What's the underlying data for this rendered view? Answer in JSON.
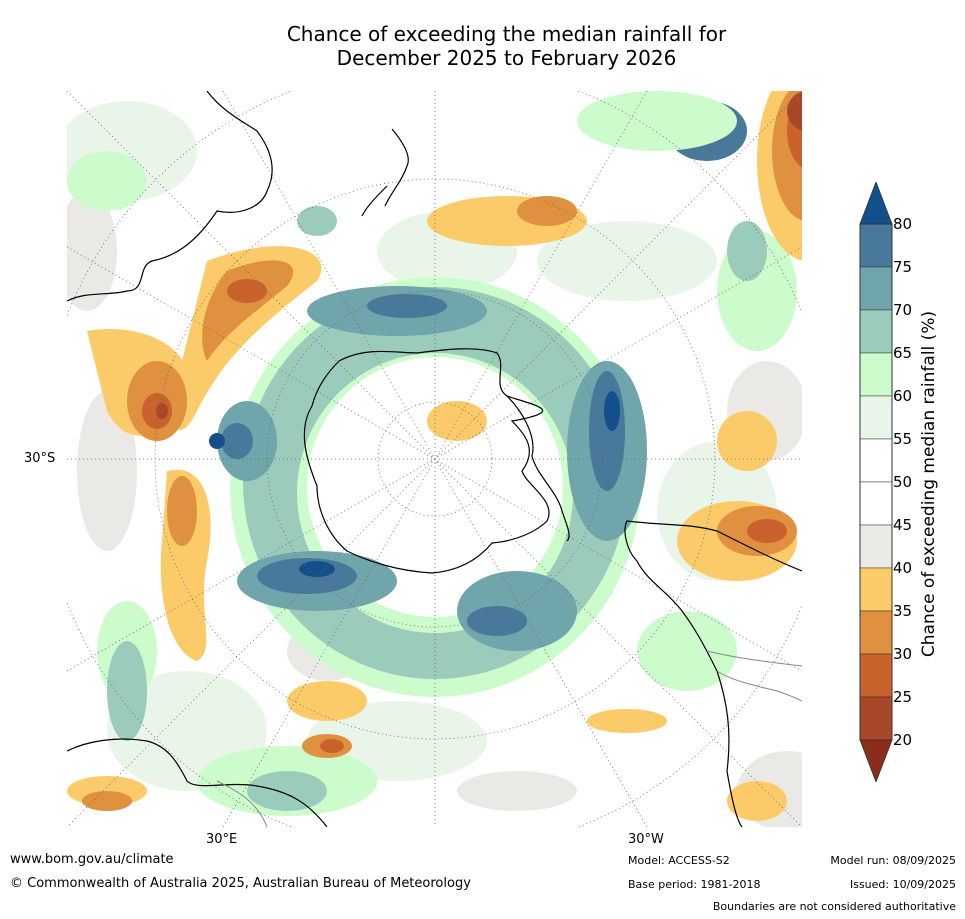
{
  "title_line1": "Chance of exceeding the median rainfall for",
  "title_line2": "December 2025 to February 2026",
  "map": {
    "projection": "south polar stereographic",
    "lat_labels": [
      "30°S"
    ],
    "lon_labels": [
      "30°E",
      "30°W"
    ],
    "colors": {
      "ocean_bg": "#ffffff",
      "coastline": "#000000",
      "boundary": "#888888",
      "graticule": "#666666"
    }
  },
  "legend": {
    "title": "Chance of exceeding median rainfall (%)",
    "ticks": [
      "80",
      "75",
      "70",
      "65",
      "60",
      "55",
      "50",
      "45",
      "40",
      "35",
      "30",
      "25",
      "20"
    ],
    "bins": [
      {
        "range": "above 80",
        "color": "#134f8a"
      },
      {
        "range": "75-80",
        "color": "#48799a"
      },
      {
        "range": "70-75",
        "color": "#6fa5ab"
      },
      {
        "range": "65-70",
        "color": "#9bccbb"
      },
      {
        "range": "60-65",
        "color": "#ccfccc"
      },
      {
        "range": "55-60",
        "color": "#eaf5ea"
      },
      {
        "range": "50-55",
        "color": "#ffffff"
      },
      {
        "range": "45-50",
        "color": "#ffffff"
      },
      {
        "range": "40-45",
        "color": "#ebe9e5"
      },
      {
        "range": "35-40",
        "color": "#fccb69"
      },
      {
        "range": "30-35",
        "color": "#e0913f"
      },
      {
        "range": "25-30",
        "color": "#c9622c"
      },
      {
        "range": "20-25",
        "color": "#a84829"
      },
      {
        "range": "below 20",
        "color": "#8c2d1c"
      }
    ]
  },
  "footer": {
    "website": "www.bom.gov.au/climate",
    "copyright": "© Commonwealth of Australia 2025, Australian Bureau of Meteorology",
    "model": "Model: ACCESS-S2",
    "base_period": "Base period: 1981-2018",
    "model_run": "Model run: 08/09/2025",
    "issued": "Issued: 10/09/2025",
    "disclaimer": "Boundaries are not considered authoritative"
  }
}
